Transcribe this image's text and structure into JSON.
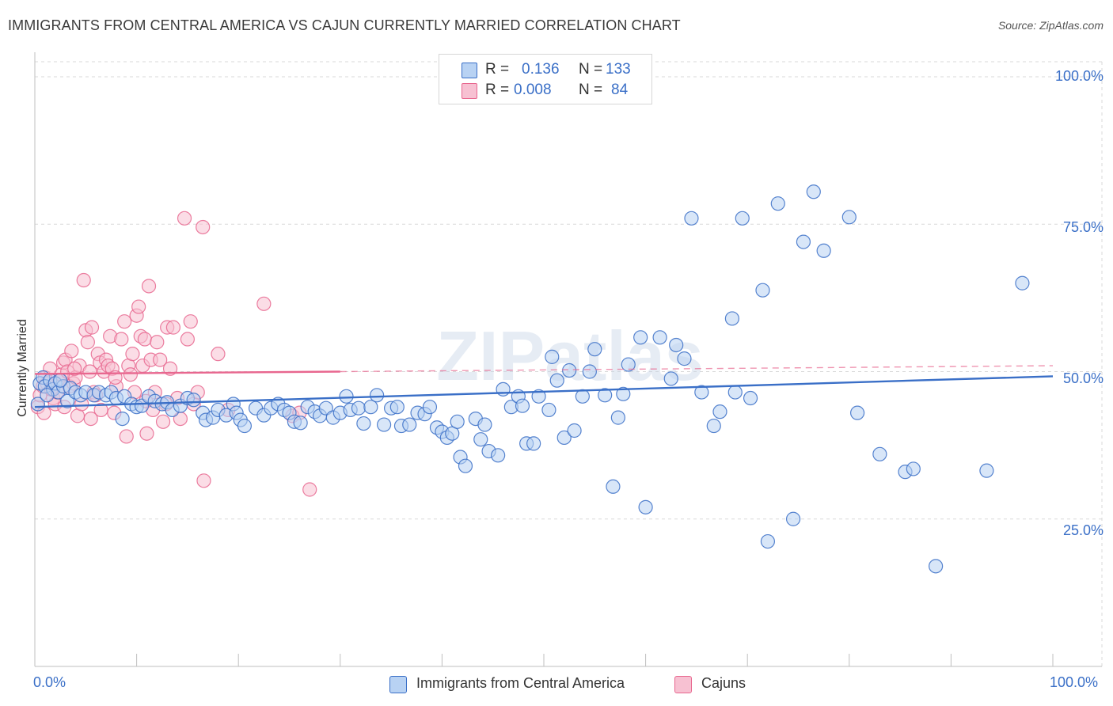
{
  "header": {
    "title": "IMMIGRANTS FROM CENTRAL AMERICA VS CAJUN CURRENTLY MARRIED CORRELATION CHART",
    "source": "Source: ZipAtlas.com"
  },
  "watermark": "ZIPatlas",
  "colors": {
    "blue": "#3a6fc7",
    "blue_fill": "#b8d2f3",
    "pink": "#e8678f",
    "pink_fill": "#f7c1d2",
    "grid": "#d9d9d9"
  },
  "legend": {
    "rows": [
      {
        "r_label": "R =",
        "r_value": "0.136",
        "n_label": "N =",
        "n_value": "133",
        "color": "#3a6fc7"
      },
      {
        "r_label": "R =",
        "r_value": "0.008",
        "n_label": "N =",
        "n_value": "84",
        "color": "#e8678f"
      }
    ]
  },
  "chart_data": {
    "type": "scatter",
    "title": "IMMIGRANTS FROM CENTRAL AMERICA VS CAJUN CURRENTLY MARRIED CORRELATION CHART",
    "xlabel": "",
    "ylabel": "Currently Married",
    "xlim": [
      0,
      100
    ],
    "ylim": [
      0,
      100
    ],
    "x_tick_labels": [
      "0.0%",
      "100.0%"
    ],
    "y_tick_labels": [
      "100.0%",
      "75.0%",
      "50.0%",
      "25.0%"
    ],
    "y_ticks": [
      100,
      75,
      50,
      25
    ],
    "grid": true,
    "legend_position": "bottom",
    "series": [
      {
        "name": "Immigrants from Central America",
        "color": "#3a6fc7",
        "trend": {
          "x": [
            0,
            100
          ],
          "y": [
            44.0,
            49.2
          ],
          "style": "solid"
        },
        "points": [
          [
            0.5,
            48.0
          ],
          [
            0.8,
            49.0
          ],
          [
            1.0,
            47.5
          ],
          [
            1.5,
            48.5
          ],
          [
            1.8,
            47.0
          ],
          [
            2.0,
            48.0
          ],
          [
            2.3,
            46.5
          ],
          [
            2.8,
            47.5
          ],
          [
            3.2,
            45.0
          ],
          [
            3.5,
            47.2
          ],
          [
            4.0,
            46.5
          ],
          [
            4.5,
            46.0
          ],
          [
            5.0,
            46.5
          ],
          [
            5.8,
            46.0
          ],
          [
            6.3,
            46.5
          ],
          [
            7.0,
            46.0
          ],
          [
            7.5,
            46.5
          ],
          [
            8.0,
            45.5
          ],
          [
            8.8,
            45.8
          ],
          [
            8.6,
            42.0
          ],
          [
            9.5,
            44.5
          ],
          [
            10.0,
            44.0
          ],
          [
            10.5,
            44.2
          ],
          [
            11.2,
            45.8
          ],
          [
            11.8,
            45.0
          ],
          [
            12.5,
            44.5
          ],
          [
            13.0,
            44.8
          ],
          [
            13.5,
            43.5
          ],
          [
            14.3,
            44.2
          ],
          [
            15.0,
            45.5
          ],
          [
            15.6,
            45.2
          ],
          [
            16.5,
            43.0
          ],
          [
            16.8,
            41.8
          ],
          [
            17.5,
            42.2
          ],
          [
            18.0,
            43.5
          ],
          [
            18.8,
            42.6
          ],
          [
            19.5,
            44.5
          ],
          [
            19.8,
            43.0
          ],
          [
            20.2,
            41.8
          ],
          [
            20.6,
            40.8
          ],
          [
            21.7,
            43.8
          ],
          [
            22.5,
            42.6
          ],
          [
            23.2,
            43.8
          ],
          [
            23.9,
            44.5
          ],
          [
            24.5,
            43.5
          ],
          [
            25.0,
            43.0
          ],
          [
            25.5,
            41.5
          ],
          [
            26.1,
            41.3
          ],
          [
            26.8,
            44.0
          ],
          [
            27.5,
            43.2
          ],
          [
            28.0,
            42.5
          ],
          [
            28.6,
            43.8
          ],
          [
            29.3,
            42.2
          ],
          [
            30.0,
            43.0
          ],
          [
            30.6,
            45.8
          ],
          [
            31.0,
            43.5
          ],
          [
            31.8,
            43.8
          ],
          [
            32.3,
            41.2
          ],
          [
            33.0,
            44.0
          ],
          [
            33.6,
            46.0
          ],
          [
            34.3,
            41.0
          ],
          [
            35.0,
            43.8
          ],
          [
            35.6,
            44.0
          ],
          [
            36.0,
            40.8
          ],
          [
            36.8,
            41.0
          ],
          [
            37.6,
            43.0
          ],
          [
            38.3,
            42.8
          ],
          [
            38.8,
            44.0
          ],
          [
            39.5,
            40.5
          ],
          [
            40.0,
            39.8
          ],
          [
            40.5,
            38.8
          ],
          [
            41.0,
            39.5
          ],
          [
            41.5,
            41.5
          ],
          [
            41.8,
            35.5
          ],
          [
            42.3,
            34.0
          ],
          [
            43.3,
            42.0
          ],
          [
            43.8,
            38.5
          ],
          [
            44.2,
            41.0
          ],
          [
            44.6,
            36.5
          ],
          [
            45.5,
            35.8
          ],
          [
            46.0,
            47.0
          ],
          [
            46.8,
            44.0
          ],
          [
            47.5,
            45.8
          ],
          [
            47.9,
            44.2
          ],
          [
            48.3,
            37.8
          ],
          [
            49.0,
            37.8
          ],
          [
            49.5,
            45.8
          ],
          [
            50.5,
            43.5
          ],
          [
            50.8,
            52.5
          ],
          [
            51.3,
            48.5
          ],
          [
            52.0,
            38.8
          ],
          [
            52.5,
            50.2
          ],
          [
            53.0,
            40.0
          ],
          [
            53.8,
            45.8
          ],
          [
            54.5,
            50.0
          ],
          [
            55.0,
            53.8
          ],
          [
            56.0,
            46.0
          ],
          [
            56.8,
            30.5
          ],
          [
            57.3,
            42.2
          ],
          [
            57.8,
            46.2
          ],
          [
            58.3,
            51.2
          ],
          [
            59.5,
            55.8
          ],
          [
            60.0,
            27.0
          ],
          [
            61.4,
            55.8
          ],
          [
            62.5,
            48.8
          ],
          [
            63.0,
            54.5
          ],
          [
            63.8,
            52.2
          ],
          [
            64.5,
            76.0
          ],
          [
            65.5,
            46.5
          ],
          [
            66.7,
            40.8
          ],
          [
            67.3,
            43.2
          ],
          [
            68.5,
            59.0
          ],
          [
            68.8,
            46.5
          ],
          [
            69.5,
            76.0
          ],
          [
            70.3,
            45.5
          ],
          [
            71.5,
            63.8
          ],
          [
            72.0,
            21.2
          ],
          [
            73.0,
            78.5
          ],
          [
            74.5,
            25.0
          ],
          [
            75.5,
            72.0
          ],
          [
            76.5,
            80.5
          ],
          [
            77.5,
            70.5
          ],
          [
            80.0,
            76.2
          ],
          [
            80.8,
            43.0
          ],
          [
            83.0,
            36.0
          ],
          [
            85.5,
            33.0
          ],
          [
            86.3,
            33.5
          ],
          [
            88.5,
            17.0
          ],
          [
            93.5,
            33.2
          ],
          [
            97.0,
            65.0
          ],
          [
            0.3,
            44.5
          ],
          [
            1.2,
            46.0
          ],
          [
            2.5,
            48.5
          ]
        ]
      },
      {
        "name": "Cajuns",
        "color": "#e8678f",
        "trend": {
          "x": [
            0,
            30
          ],
          "y": [
            49.6,
            50.0
          ],
          "style": "solid",
          "extended": {
            "x": [
              30,
              100
            ],
            "y": [
              50.0,
              51.0
            ],
            "style": "dashed"
          }
        },
        "points": [
          [
            0.3,
            44.0
          ],
          [
            0.5,
            46.0
          ],
          [
            0.8,
            47.5
          ],
          [
            1.0,
            49.0
          ],
          [
            1.2,
            48.0
          ],
          [
            1.5,
            50.5
          ],
          [
            1.8,
            45.5
          ],
          [
            2.0,
            44.5
          ],
          [
            2.2,
            46.5
          ],
          [
            2.4,
            48.5
          ],
          [
            2.6,
            49.5
          ],
          [
            2.8,
            51.5
          ],
          [
            3.0,
            52.0
          ],
          [
            3.2,
            50.0
          ],
          [
            3.4,
            47.5
          ],
          [
            3.6,
            53.5
          ],
          [
            3.8,
            48.0
          ],
          [
            4.0,
            49.0
          ],
          [
            4.2,
            42.5
          ],
          [
            4.4,
            51.0
          ],
          [
            4.6,
            44.5
          ],
          [
            4.8,
            65.5
          ],
          [
            5.0,
            57.0
          ],
          [
            5.2,
            55.0
          ],
          [
            5.4,
            50.0
          ],
          [
            5.6,
            57.5
          ],
          [
            5.8,
            46.5
          ],
          [
            6.0,
            46.0
          ],
          [
            6.2,
            53.0
          ],
          [
            6.4,
            51.5
          ],
          [
            6.5,
            43.5
          ],
          [
            6.8,
            50.0
          ],
          [
            7.0,
            52.0
          ],
          [
            7.2,
            51.0
          ],
          [
            7.4,
            56.0
          ],
          [
            7.6,
            50.5
          ],
          [
            7.8,
            43.0
          ],
          [
            8.0,
            47.5
          ],
          [
            8.5,
            55.5
          ],
          [
            8.8,
            58.5
          ],
          [
            9.0,
            39.0
          ],
          [
            9.2,
            51.0
          ],
          [
            9.4,
            49.5
          ],
          [
            9.6,
            53.0
          ],
          [
            9.8,
            46.5
          ],
          [
            10.0,
            59.5
          ],
          [
            10.2,
            61.0
          ],
          [
            10.4,
            56.0
          ],
          [
            10.6,
            51.0
          ],
          [
            10.8,
            55.5
          ],
          [
            11.0,
            39.5
          ],
          [
            11.2,
            64.5
          ],
          [
            11.4,
            52.0
          ],
          [
            11.6,
            43.5
          ],
          [
            11.8,
            46.5
          ],
          [
            12.0,
            55.0
          ],
          [
            12.3,
            52.0
          ],
          [
            12.6,
            41.5
          ],
          [
            13.0,
            57.5
          ],
          [
            13.3,
            50.5
          ],
          [
            13.6,
            57.5
          ],
          [
            14.0,
            45.5
          ],
          [
            14.3,
            42.0
          ],
          [
            14.7,
            76.0
          ],
          [
            15.0,
            55.5
          ],
          [
            15.3,
            58.5
          ],
          [
            15.6,
            44.5
          ],
          [
            16.5,
            74.5
          ],
          [
            16.6,
            31.5
          ],
          [
            18.0,
            53.0
          ],
          [
            19.0,
            43.5
          ],
          [
            22.5,
            61.5
          ],
          [
            25.3,
            42.5
          ],
          [
            26.0,
            43.0
          ],
          [
            27.0,
            30.0
          ],
          [
            0.9,
            43.0
          ],
          [
            1.6,
            47.0
          ],
          [
            2.9,
            44.0
          ],
          [
            3.9,
            50.5
          ],
          [
            5.5,
            42.0
          ],
          [
            7.9,
            49.0
          ],
          [
            10.9,
            45.0
          ],
          [
            12.9,
            44.5
          ],
          [
            16.0,
            46.5
          ]
        ]
      }
    ]
  },
  "bottom_legend": [
    {
      "label": "Immigrants from Central America",
      "color": "#3a6fc7"
    },
    {
      "label": "Cajuns",
      "color": "#e8678f"
    }
  ]
}
